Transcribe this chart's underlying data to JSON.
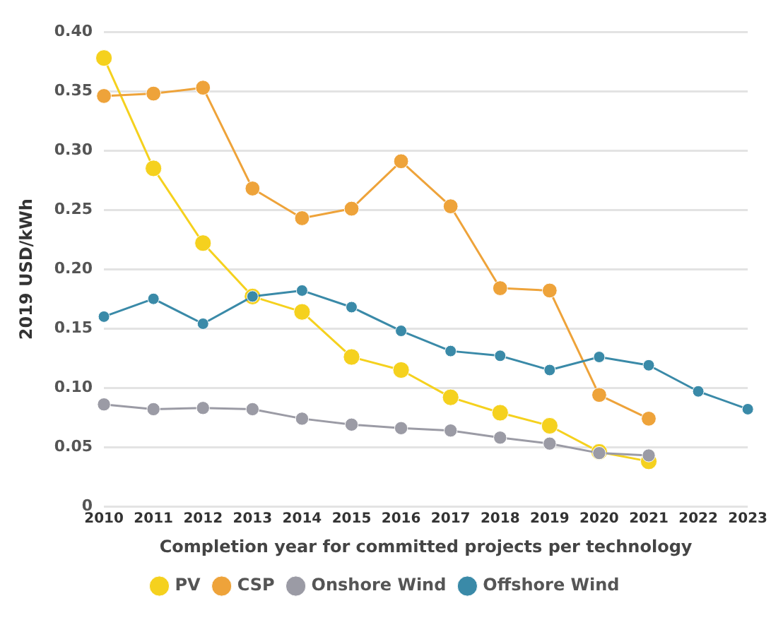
{
  "chart_data": {
    "type": "line",
    "xlabel": "Completion year for committed projects per technology",
    "ylabel": "2019 USD/kWh",
    "categories": [
      "2010",
      "2011",
      "2012",
      "2013",
      "2014",
      "2015",
      "2016",
      "2017",
      "2018",
      "2019",
      "2020",
      "2021",
      "2022",
      "2023"
    ],
    "series": [
      {
        "name": "PV",
        "color": "#f5d11e",
        "values": [
          0.378,
          0.285,
          0.222,
          0.177,
          0.164,
          0.126,
          0.115,
          0.092,
          0.079,
          0.068,
          0.046,
          0.038,
          null,
          null
        ]
      },
      {
        "name": "CSP",
        "color": "#eea33a",
        "values": [
          0.346,
          0.348,
          0.353,
          0.268,
          0.243,
          0.251,
          0.291,
          0.253,
          0.184,
          0.182,
          0.094,
          0.074,
          null,
          null
        ]
      },
      {
        "name": "Onshore Wind",
        "color": "#9b9ba5",
        "values": [
          0.086,
          0.082,
          0.083,
          0.082,
          0.074,
          0.069,
          0.066,
          0.064,
          0.058,
          0.053,
          0.045,
          0.043,
          null,
          null
        ]
      },
      {
        "name": "Offshore Wind",
        "color": "#3a8aa8",
        "values": [
          0.16,
          0.175,
          0.154,
          0.177,
          0.182,
          0.168,
          0.148,
          0.131,
          0.127,
          0.115,
          0.126,
          0.119,
          0.097,
          0.082
        ]
      }
    ],
    "ylim": [
      0,
      0.4
    ],
    "yticks": [
      {
        "value": 0,
        "label": "0"
      },
      {
        "value": 0.05,
        "label": "0.05"
      },
      {
        "value": 0.1,
        "label": "0.10"
      },
      {
        "value": 0.15,
        "label": "0.15"
      },
      {
        "value": 0.2,
        "label": "0.20"
      },
      {
        "value": 0.25,
        "label": "0.25"
      },
      {
        "value": 0.3,
        "label": "0.30"
      },
      {
        "value": 0.35,
        "label": "0.35"
      },
      {
        "value": 0.4,
        "label": "0.40"
      }
    ],
    "grid": "y",
    "legend": "bottom",
    "marker": "circle",
    "line_style": "solid"
  }
}
